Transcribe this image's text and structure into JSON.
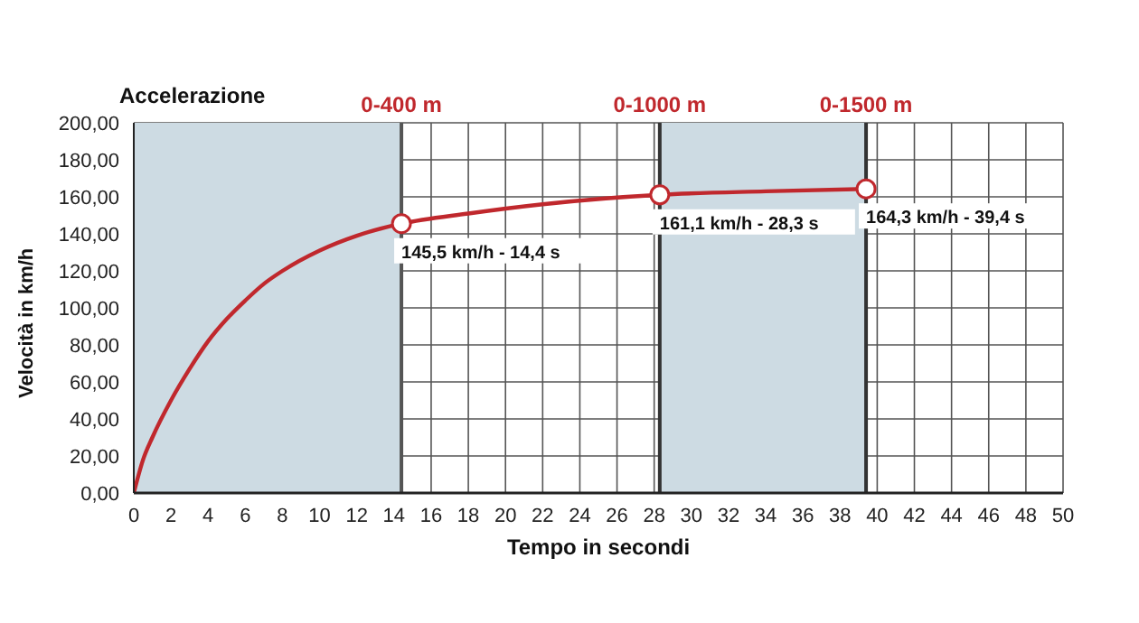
{
  "chart_data": {
    "type": "line",
    "title": "Accelerazione",
    "xlabel": "Tempo in secondi",
    "ylabel": "Velocità in km/h",
    "xlim": [
      0,
      50
    ],
    "xticks": [
      0,
      2,
      4,
      6,
      8,
      10,
      12,
      14,
      16,
      18,
      20,
      22,
      24,
      26,
      28,
      30,
      32,
      34,
      36,
      38,
      40,
      42,
      44,
      46,
      48,
      50
    ],
    "ylim": [
      0,
      200
    ],
    "yticks": [
      {
        "value": 0,
        "label": "0,00"
      },
      {
        "value": 20,
        "label": "20,00"
      },
      {
        "value": 40,
        "label": "40,00"
      },
      {
        "value": 60,
        "label": "60,00"
      },
      {
        "value": 80,
        "label": "80,00"
      },
      {
        "value": 100,
        "label": "100,00"
      },
      {
        "value": 120,
        "label": "120,00"
      },
      {
        "value": 140,
        "label": "140,00"
      },
      {
        "value": 160,
        "label": "160,00"
      },
      {
        "value": 180,
        "label": "180,00"
      },
      {
        "value": 200,
        "label": "200,00"
      }
    ],
    "grid": true,
    "series": [
      {
        "color": "#c0282d",
        "marker": "none",
        "line_style": "solid",
        "x": [
          0,
          0.5,
          1,
          2,
          3,
          4,
          5,
          6,
          7,
          8,
          10,
          12,
          14.4,
          18,
          22,
          28.3,
          34,
          39.4
        ],
        "values": [
          0,
          18,
          30,
          50,
          67,
          82,
          94,
          104,
          113,
          120,
          131,
          139,
          145.5,
          151,
          156,
          161.1,
          163,
          164.3
        ]
      },
      {
        "type": "scatter",
        "color": "#c0282d",
        "marker": "circle",
        "x": [
          14.4,
          28.3,
          39.4
        ],
        "values": [
          145.5,
          161.1,
          164.3
        ]
      }
    ],
    "bands": [
      {
        "axis": "x",
        "from": 0,
        "to": 14.4,
        "color": "#cddbe3"
      },
      {
        "axis": "x",
        "from": 28.3,
        "to": 39.4,
        "color": "#cddbe3"
      }
    ],
    "ref_lines": [
      {
        "axis": "x",
        "value": 14.4,
        "label": "0-400 m",
        "color": "#555555"
      },
      {
        "axis": "x",
        "value": 28.3,
        "label": "0-1000 m",
        "color": "#333333"
      },
      {
        "axis": "x",
        "value": 39.4,
        "label": "0-1500 m",
        "color": "#333333"
      }
    ],
    "annotations": [
      {
        "text": "145,5 km/h - 14,4 s",
        "x": 14.4,
        "y": 145.5
      },
      {
        "text": "161,1 km/h - 28,3 s",
        "x": 28.3,
        "y": 161.1
      },
      {
        "text": "164,3 km/h - 39,4 s",
        "x": 39.4,
        "y": 164.3
      }
    ]
  }
}
